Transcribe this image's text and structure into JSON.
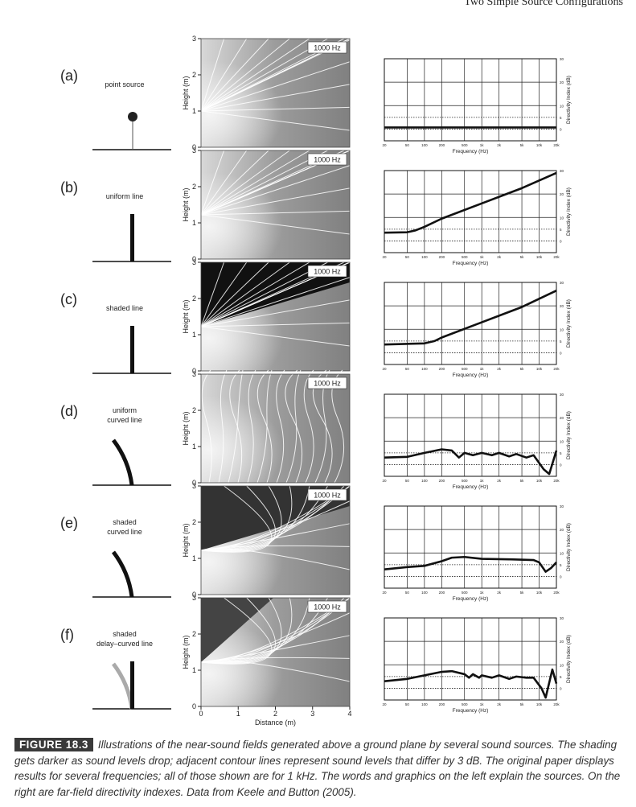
{
  "header": {
    "running_title": "Two Simple Source Configurations"
  },
  "figure": {
    "panels": [
      {
        "label": "(a)",
        "source": [
          "point source"
        ],
        "field_label": "1000 Hz"
      },
      {
        "label": "(b)",
        "source": [
          "uniform line"
        ],
        "field_label": "1000 Hz"
      },
      {
        "label": "(c)",
        "source": [
          "shaded line"
        ],
        "field_label": "1000 Hz"
      },
      {
        "label": "(d)",
        "source": [
          "uniform",
          "curved line"
        ],
        "field_label": "1000 Hz"
      },
      {
        "label": "(e)",
        "source": [
          "shaded",
          "curved line"
        ],
        "field_label": "1000 Hz"
      },
      {
        "label": "(f)",
        "source": [
          "shaded",
          "delay–curved line"
        ],
        "field_label": "1000 Hz"
      }
    ],
    "near_field": {
      "ylabel": "Height (m)",
      "ylim": [
        0,
        3
      ],
      "yticks": [
        0,
        1,
        2,
        3
      ],
      "xlabel": "Distance (m)",
      "xlim": [
        0,
        4
      ],
      "xticks": [
        0,
        1,
        2,
        3,
        4
      ]
    }
  },
  "chart_data": [
    {
      "type": "line",
      "xlabel": "Frequency (Hz)",
      "ylabel": "Directivity Index (dB)",
      "log_x": true,
      "color": "#111111",
      "xlim": [
        20,
        20000
      ],
      "ylim": [
        -5,
        30
      ],
      "xticks": [
        20,
        50,
        100,
        200,
        500,
        {
          "value": 1000,
          "label": "1k"
        },
        {
          "value": 2000,
          "label": "2k"
        },
        {
          "value": 5000,
          "label": "5k"
        },
        {
          "value": 10000,
          "label": "10k"
        },
        {
          "value": 20000,
          "label": "20k"
        }
      ],
      "yticks": [
        10,
        20,
        30
      ],
      "minor_yticks": [
        0,
        5
      ],
      "minor_grid_style": "dotted",
      "x": [
        20,
        20000
      ],
      "values": [
        0.7,
        0.7
      ]
    },
    {
      "type": "line",
      "xlabel": "Frequency (Hz)",
      "ylabel": "Directivity Index (dB)",
      "log_x": true,
      "color": "#111111",
      "xlim": [
        20,
        20000
      ],
      "ylim": [
        -5,
        30
      ],
      "xticks": [
        20,
        50,
        100,
        200,
        500,
        {
          "value": 1000,
          "label": "1k"
        },
        {
          "value": 2000,
          "label": "2k"
        },
        {
          "value": 5000,
          "label": "5k"
        },
        {
          "value": 10000,
          "label": "10k"
        },
        {
          "value": 20000,
          "label": "20k"
        }
      ],
      "yticks": [
        10,
        20,
        30
      ],
      "minor_yticks": [
        0,
        5
      ],
      "minor_grid_style": "dotted",
      "x": [
        20,
        50,
        70,
        100,
        200,
        1000,
        5000,
        20000
      ],
      "values": [
        3.5,
        3.7,
        4.5,
        6,
        9.5,
        16,
        22.5,
        29
      ]
    },
    {
      "type": "line",
      "xlabel": "Frequency (Hz)",
      "ylabel": "Directivity Index (dB)",
      "log_x": true,
      "color": "#111111",
      "xlim": [
        20,
        20000
      ],
      "ylim": [
        -5,
        30
      ],
      "xticks": [
        20,
        50,
        100,
        200,
        500,
        {
          "value": 1000,
          "label": "1k"
        },
        {
          "value": 2000,
          "label": "2k"
        },
        {
          "value": 5000,
          "label": "5k"
        },
        {
          "value": 10000,
          "label": "10k"
        },
        {
          "value": 20000,
          "label": "20k"
        }
      ],
      "yticks": [
        10,
        20,
        30
      ],
      "minor_yticks": [
        0,
        5
      ],
      "minor_grid_style": "dotted",
      "x": [
        20,
        100,
        150,
        200,
        1000,
        5000,
        20000
      ],
      "values": [
        3.5,
        4,
        5,
        6.5,
        13,
        19.5,
        26.5
      ]
    },
    {
      "type": "line",
      "xlabel": "Frequency (Hz)",
      "ylabel": "Directivity Index (dB)",
      "log_x": true,
      "color": "#111111",
      "xlim": [
        20,
        20000
      ],
      "ylim": [
        -5,
        30
      ],
      "xticks": [
        20,
        50,
        100,
        200,
        500,
        {
          "value": 1000,
          "label": "1k"
        },
        {
          "value": 2000,
          "label": "2k"
        },
        {
          "value": 5000,
          "label": "5k"
        },
        {
          "value": 10000,
          "label": "10k"
        },
        {
          "value": 20000,
          "label": "20k"
        }
      ],
      "yticks": [
        10,
        20,
        30
      ],
      "minor_yticks": [
        0,
        5
      ],
      "minor_grid_style": "dotted",
      "x": [
        20,
        50,
        100,
        200,
        300,
        400,
        500,
        700,
        1000,
        1500,
        2000,
        3000,
        4000,
        6000,
        8000,
        12000,
        15000,
        20000
      ],
      "values": [
        3,
        3.3,
        5,
        6.5,
        6,
        3,
        5,
        4,
        5,
        4,
        5,
        3.5,
        4.5,
        3,
        4,
        -2,
        -4,
        6
      ]
    },
    {
      "type": "line",
      "xlabel": "Frequency (Hz)",
      "ylabel": "Directivity Index (dB)",
      "log_x": true,
      "color": "#111111",
      "xlim": [
        20,
        20000
      ],
      "ylim": [
        -5,
        30
      ],
      "xticks": [
        20,
        50,
        100,
        200,
        500,
        {
          "value": 1000,
          "label": "1k"
        },
        {
          "value": 2000,
          "label": "2k"
        },
        {
          "value": 5000,
          "label": "5k"
        },
        {
          "value": 10000,
          "label": "10k"
        },
        {
          "value": 20000,
          "label": "20k"
        }
      ],
      "yticks": [
        10,
        20,
        30
      ],
      "minor_yticks": [
        0,
        5
      ],
      "minor_grid_style": "dotted",
      "x": [
        20,
        50,
        100,
        200,
        300,
        500,
        1000,
        3000,
        8000,
        10000,
        13000,
        16000,
        20000
      ],
      "values": [
        3,
        4,
        4.5,
        6.5,
        8,
        8.3,
        7.5,
        7.3,
        7,
        6,
        2,
        3.5,
        6
      ]
    },
    {
      "type": "line",
      "xlabel": "Frequency (Hz)",
      "ylabel": "Directivity Index (dB)",
      "log_x": true,
      "color": "#111111",
      "xlim": [
        20,
        20000
      ],
      "ylim": [
        -5,
        30
      ],
      "xticks": [
        20,
        50,
        100,
        200,
        500,
        {
          "value": 1000,
          "label": "1k"
        },
        {
          "value": 2000,
          "label": "2k"
        },
        {
          "value": 5000,
          "label": "5k"
        },
        {
          "value": 10000,
          "label": "10k"
        },
        {
          "value": 20000,
          "label": "20k"
        }
      ],
      "yticks": [
        10,
        20,
        30
      ],
      "minor_yticks": [
        0,
        5
      ],
      "minor_grid_style": "dotted",
      "x": [
        20,
        50,
        100,
        200,
        300,
        500,
        600,
        700,
        900,
        1000,
        1500,
        2000,
        3000,
        4000,
        6000,
        8000,
        11000,
        13000,
        17000,
        20000
      ],
      "values": [
        3,
        4,
        5.5,
        7,
        7.3,
        6,
        4.5,
        6,
        4.5,
        5.5,
        4.5,
        5.5,
        4,
        5,
        4.5,
        4.5,
        0,
        -4,
        8,
        2
      ]
    }
  ],
  "caption": {
    "tag": "FIGURE 18.3",
    "text": "Illustrations of the near-sound fields generated above a ground plane by several sound sources. The shading gets darker as sound levels drop; adjacent contour lines represent sound levels that differ by 3 dB. The original paper displays results for several frequencies; all of those shown are for 1 kHz. The words and graphics on the left explain the sources. On the right are far-field directivity indexes. Data from Keele and Button (2005)."
  }
}
